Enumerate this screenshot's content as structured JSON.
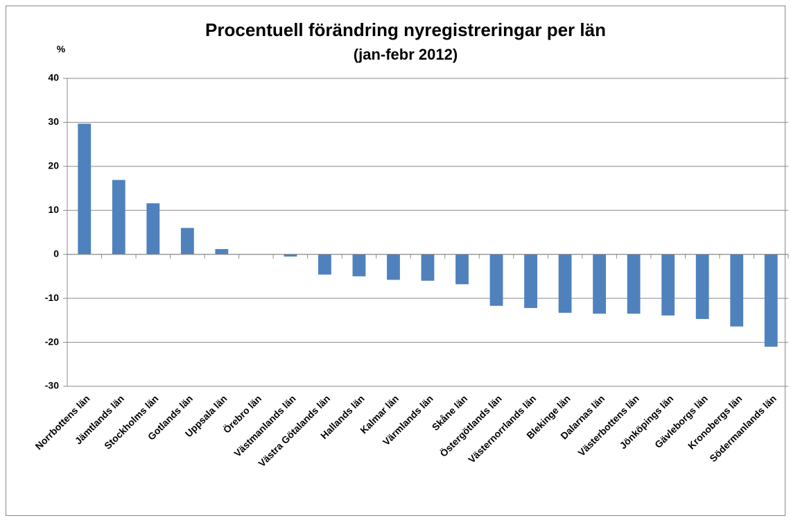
{
  "chart_data": {
    "type": "bar",
    "title": "Procentuell förändring nyregistreringar per län",
    "subtitle": "(jan-febr 2012)",
    "y_axis_label": "%",
    "categories": [
      "Norrbottens län",
      "Jämtlands län",
      "Stockholms län",
      "Gotlands län",
      "Uppsala län",
      "Örebro län",
      "Västmanlands län",
      "Västra Götalands län",
      "Hallands län",
      "Kalmar län",
      "Värmlands län",
      "Skåne län",
      "Östergötlands län",
      "Västernorrlands län",
      "Blekinge län",
      "Dalarnas län",
      "Västerbottens län",
      "Jönköpings län",
      "Gävleborgs län",
      "Kronobergs län",
      "Södermanlands län"
    ],
    "values": [
      29.7,
      16.9,
      11.6,
      6.0,
      1.2,
      0,
      -0.5,
      -4.6,
      -5.0,
      -5.8,
      -6.0,
      -6.8,
      -11.7,
      -12.2,
      -13.3,
      -13.5,
      -13.5,
      -13.9,
      -14.7,
      -16.4,
      -21.0
    ],
    "color": "#4f81bd",
    "ylim": [
      -30,
      40
    ],
    "yticks": [
      -30,
      -20,
      -10,
      0,
      10,
      20,
      30,
      40
    ],
    "grid": true
  }
}
